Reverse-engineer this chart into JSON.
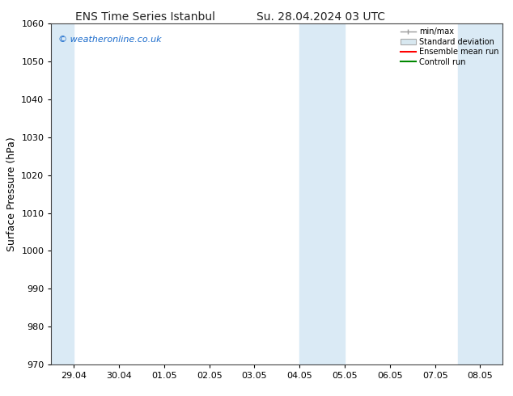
{
  "title_left": "ENS Time Series Istanbul",
  "title_right": "Su. 28.04.2024 03 UTC",
  "ylabel": "Surface Pressure (hPa)",
  "ylim": [
    970,
    1060
  ],
  "yticks": [
    970,
    980,
    990,
    1000,
    1010,
    1020,
    1030,
    1040,
    1050,
    1060
  ],
  "xlim_start": -0.5,
  "xlim_end": 9.5,
  "xtick_labels": [
    "29.04",
    "30.04",
    "01.05",
    "02.05",
    "03.05",
    "04.05",
    "05.05",
    "06.05",
    "07.05",
    "08.05"
  ],
  "xtick_positions": [
    0,
    1,
    2,
    3,
    4,
    5,
    6,
    7,
    8,
    9
  ],
  "shaded_bands": [
    {
      "x_start": -0.5,
      "x_end": 0.0,
      "color": "#daeaf5"
    },
    {
      "x_start": 5.0,
      "x_end": 6.0,
      "color": "#daeaf5"
    },
    {
      "x_start": 8.5,
      "x_end": 9.5,
      "color": "#daeaf5"
    }
  ],
  "watermark_text": "© weatheronline.co.uk",
  "watermark_color": "#1a6bcc",
  "legend_labels": [
    "min/max",
    "Standard deviation",
    "Ensemble mean run",
    "Controll run"
  ],
  "legend_line_colors": [
    "#999999",
    "#bbbbbb",
    "#ff0000",
    "#008800"
  ],
  "background_color": "#ffffff",
  "plot_bg_color": "#ffffff",
  "title_fontsize": 10,
  "tick_fontsize": 8,
  "ylabel_fontsize": 9
}
